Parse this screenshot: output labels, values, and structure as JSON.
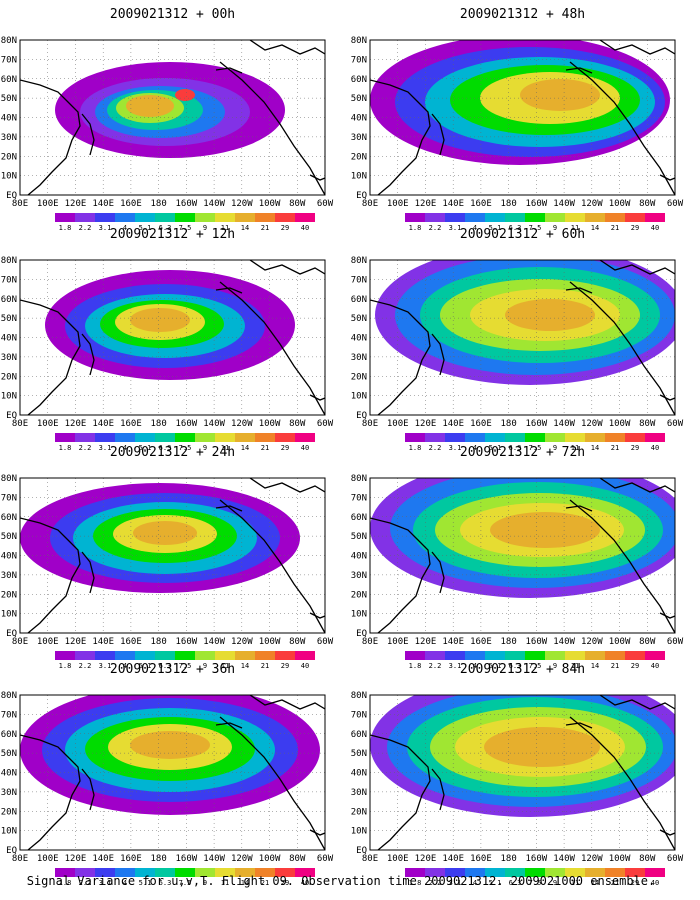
{
  "caption": "Signal Variance for u,v,T. Flight 09. Observation time 2009021312. 2009021000 ensemble.",
  "colorbar": {
    "labels": [
      "1.8",
      "2.2",
      "3.1",
      "4",
      "5.1",
      "6.3",
      "7.5",
      "9",
      "11",
      "14",
      "21",
      "29",
      "40"
    ],
    "colors": [
      "#a000c8",
      "#8232e6",
      "#3c3cf0",
      "#1e78f0",
      "#00b4d2",
      "#00c8a0",
      "#00dc00",
      "#a0e632",
      "#e6dc32",
      "#e6af2d",
      "#f08228",
      "#fa3c3c",
      "#f00082"
    ]
  },
  "axes": {
    "y_labels": [
      "EQ",
      "10N",
      "20N",
      "30N",
      "40N",
      "50N",
      "60N",
      "70N",
      "80N"
    ],
    "x_labels": [
      "80E",
      "100E",
      "120E",
      "140E",
      "160E",
      "180",
      "160W",
      "140W",
      "120W",
      "100W",
      "80W",
      "60W"
    ]
  },
  "panels": [
    {
      "title": "2009021312 + 00h"
    },
    {
      "title": "2009021312 + 48h"
    },
    {
      "title": "2009021312 + 12h"
    },
    {
      "title": "2009021312 + 60h"
    },
    {
      "title": "2009021312 + 24h"
    },
    {
      "title": "2009021312 + 72h"
    },
    {
      "title": "2009021312 + 36h"
    },
    {
      "title": "2009021312 + 84h"
    }
  ]
}
